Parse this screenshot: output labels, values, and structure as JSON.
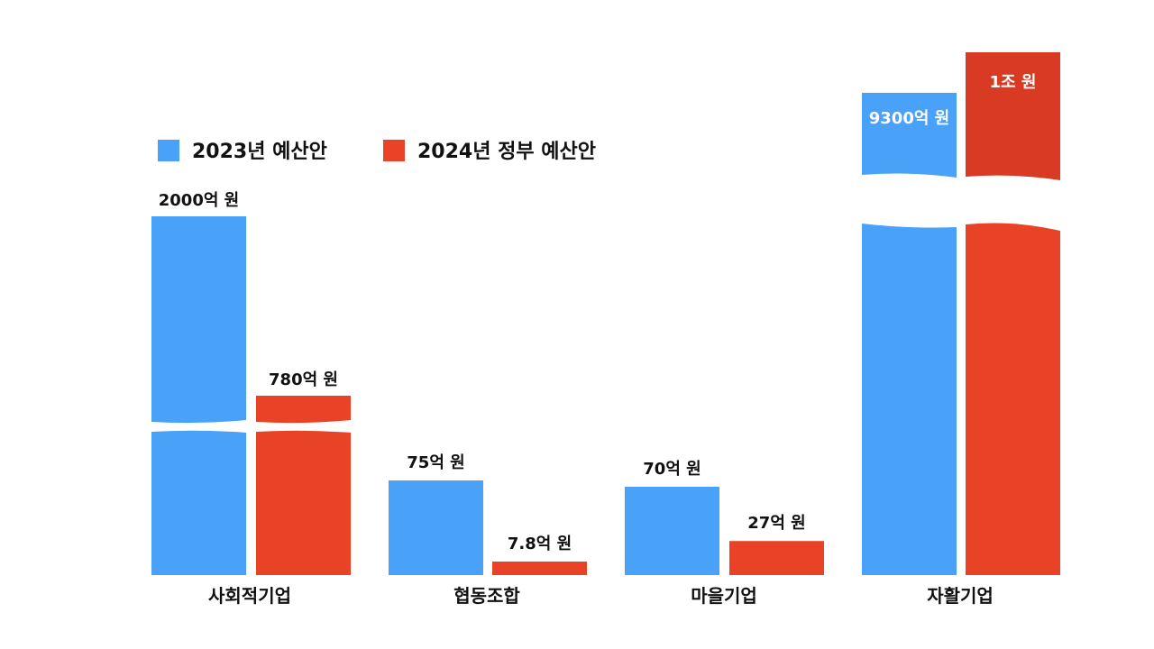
{
  "chart_data": {
    "type": "bar",
    "title": "",
    "xlabel": "",
    "ylabel": "",
    "categories": [
      "사회적기업",
      "협동조합",
      "마을기업",
      "자활기업"
    ],
    "series": [
      {
        "name": "2023년 예산안",
        "color": "#4aa1f8",
        "values": [
          2000,
          75,
          70,
          9300
        ],
        "labels": [
          "2000억 원",
          "75억 원",
          "70억 원",
          "9300억 원"
        ]
      },
      {
        "name": "2024년 정부 예산안",
        "color": "#e94327",
        "values": [
          780,
          7.8,
          27,
          10000
        ],
        "labels": [
          "780억 원",
          "7.8억 원",
          "27억 원",
          "1조 원"
        ]
      }
    ],
    "units": "억 원",
    "axis_breaks": [
      "사회적기업",
      "자활기업"
    ],
    "legend": "top-left",
    "grid": false
  }
}
